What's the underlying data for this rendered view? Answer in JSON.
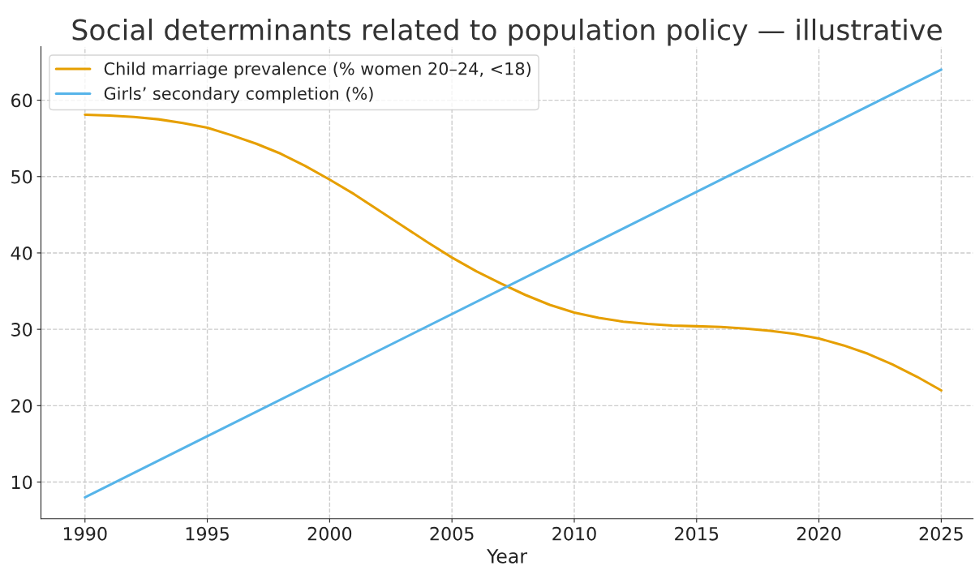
{
  "chart_data": {
    "type": "line",
    "title": "Social determinants related to population policy — illustrative",
    "xlabel": "Year",
    "series": [
      {
        "name": "Child marriage prevalence (% women 20–24, <18)",
        "color": "#e69f00",
        "x": [
          1990,
          1991,
          1992,
          1993,
          1994,
          1995,
          1996,
          1997,
          1998,
          1999,
          2000,
          2001,
          2002,
          2003,
          2004,
          2005,
          2006,
          2007,
          2008,
          2009,
          2010,
          2011,
          2012,
          2013,
          2014,
          2015,
          2016,
          2017,
          2018,
          2019,
          2020,
          2021,
          2022,
          2023,
          2024,
          2025
        ],
        "values": [
          58.1,
          58.0,
          57.8,
          57.5,
          57.0,
          56.4,
          55.4,
          54.3,
          53.0,
          51.4,
          49.6,
          47.7,
          45.6,
          43.5,
          41.4,
          39.4,
          37.6,
          36.0,
          34.5,
          33.2,
          32.2,
          31.5,
          31.0,
          30.7,
          30.5,
          30.4,
          30.3,
          30.1,
          29.8,
          29.4,
          28.8,
          27.9,
          26.8,
          25.4,
          23.8,
          22.0
        ]
      },
      {
        "name": "Girls’ secondary completion (%)",
        "color": "#56b4e9",
        "x": [
          1990,
          2025
        ],
        "values": [
          8,
          64
        ]
      }
    ],
    "xlim": [
      1988.2,
      2026.3
    ],
    "xticks": [
      1990,
      1995,
      2000,
      2005,
      2010,
      2015,
      2020,
      2025
    ],
    "ylim": [
      5.2,
      67.0
    ],
    "yticks": [
      10,
      20,
      30,
      40,
      50,
      60
    ],
    "grid": true,
    "legend": "top left",
    "line_style": "solid",
    "marker": "none"
  }
}
